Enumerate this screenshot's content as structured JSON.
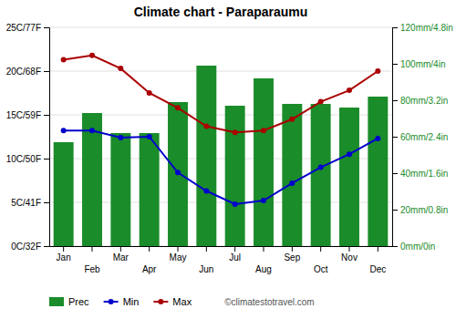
{
  "chart_data": {
    "type": "bar",
    "title": "Climate chart - Paraparaumu",
    "categories": [
      "Jan",
      "Feb",
      "Mar",
      "Apr",
      "May",
      "Jun",
      "Jul",
      "Aug",
      "Sep",
      "Oct",
      "Nov",
      "Dec"
    ],
    "series": [
      {
        "name": "Prec",
        "type": "bar",
        "axis": "y2",
        "color": "#1a8c2a",
        "values": [
          57,
          73,
          62,
          62,
          79,
          99,
          77,
          92,
          78,
          78,
          76,
          82
        ]
      },
      {
        "name": "Min",
        "type": "line",
        "marker": "circle",
        "color": "#0000cc",
        "values": [
          13.2,
          13.2,
          12.4,
          12.5,
          8.4,
          6.3,
          4.8,
          5.2,
          7.2,
          9.0,
          10.5,
          12.3
        ]
      },
      {
        "name": "Max",
        "type": "line",
        "marker": "circle",
        "color": "#aa0000",
        "values": [
          21.3,
          21.8,
          20.3,
          17.5,
          15.8,
          13.7,
          13.0,
          13.2,
          14.5,
          16.5,
          17.8,
          20.0
        ]
      }
    ],
    "ylim": [
      0,
      25
    ],
    "yticks": [
      {
        "value": 0,
        "label": "0C/32F"
      },
      {
        "value": 5,
        "label": "5C/41F"
      },
      {
        "value": 10,
        "label": "10C/50F"
      },
      {
        "value": 15,
        "label": "15C/59F"
      },
      {
        "value": 20,
        "label": "20C/68F"
      },
      {
        "value": 25,
        "label": "25C/77F"
      }
    ],
    "y2lim": [
      0,
      120
    ],
    "y2ticks": [
      {
        "value": 0,
        "label": "0mm/0in"
      },
      {
        "value": 20,
        "label": "20mm/0.8in"
      },
      {
        "value": 40,
        "label": "40mm/1.6in"
      },
      {
        "value": 60,
        "label": "60mm/2.4in"
      },
      {
        "value": 80,
        "label": "80mm/3.2in"
      },
      {
        "value": 100,
        "label": "100mm/4in"
      },
      {
        "value": 120,
        "label": "120mm/4.8in"
      }
    ],
    "grid": true,
    "legend": "bottom",
    "annotations": [
      "©climatestotravel.com"
    ]
  }
}
